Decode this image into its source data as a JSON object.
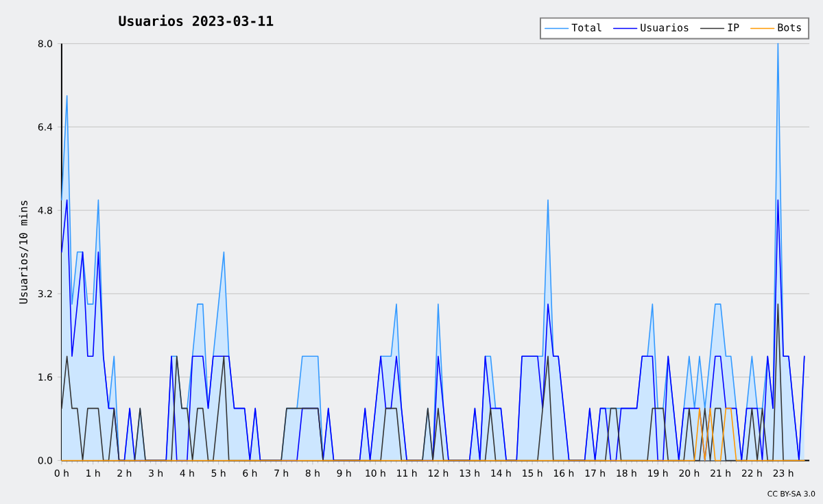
{
  "chart_data": {
    "type": "line",
    "title": "Usuarios  2023-03-11",
    "ylabel": "Usuarios/10 mins",
    "x": [
      0,
      0.17,
      0.33,
      0.5,
      0.67,
      0.83,
      1,
      1.17,
      1.33,
      1.5,
      1.67,
      1.83,
      2,
      2.17,
      2.33,
      2.5,
      2.67,
      2.83,
      3,
      3.17,
      3.33,
      3.5,
      3.67,
      3.83,
      4,
      4.17,
      4.33,
      4.5,
      4.67,
      4.83,
      5,
      5.17,
      5.33,
      5.5,
      5.67,
      5.83,
      6,
      6.17,
      6.33,
      6.5,
      6.67,
      6.83,
      7,
      7.17,
      7.33,
      7.5,
      7.67,
      7.83,
      8,
      8.17,
      8.33,
      8.5,
      8.67,
      8.83,
      9,
      9.17,
      9.33,
      9.5,
      9.67,
      9.83,
      10,
      10.17,
      10.33,
      10.5,
      10.67,
      10.83,
      11,
      11.17,
      11.33,
      11.5,
      11.67,
      11.83,
      12,
      12.17,
      12.33,
      12.5,
      12.67,
      12.83,
      13,
      13.17,
      13.33,
      13.5,
      13.67,
      13.83,
      14,
      14.17,
      14.33,
      14.5,
      14.67,
      14.83,
      15,
      15.17,
      15.33,
      15.5,
      15.67,
      15.83,
      16,
      16.17,
      16.33,
      16.5,
      16.67,
      16.83,
      17,
      17.17,
      17.33,
      17.5,
      17.67,
      17.83,
      18,
      18.17,
      18.33,
      18.5,
      18.67,
      18.83,
      19,
      19.17,
      19.33,
      19.5,
      19.67,
      19.83,
      20,
      20.17,
      20.33,
      20.5,
      20.67,
      20.83,
      21,
      21.17,
      21.33,
      21.5,
      21.67,
      21.83,
      22,
      22.17,
      22.33,
      22.5,
      22.67,
      22.83,
      23,
      23.17,
      23.33,
      23.5,
      23.67
    ],
    "series": [
      {
        "name": "Total",
        "type": "area",
        "color": "#3399ff",
        "values": [
          5,
          7,
          3,
          4,
          4,
          3,
          3,
          5,
          2,
          1,
          2,
          0,
          0,
          1,
          0,
          1,
          0,
          0,
          0,
          0,
          0,
          2,
          2,
          1,
          1,
          2,
          3,
          3,
          1,
          2,
          3,
          4,
          2,
          1,
          1,
          1,
          0,
          1,
          0,
          0,
          0,
          0,
          0,
          1,
          1,
          1,
          2,
          2,
          2,
          2,
          0,
          1,
          0,
          0,
          0,
          0,
          0,
          0,
          1,
          0,
          1,
          2,
          2,
          2,
          3,
          1,
          0,
          0,
          0,
          0,
          1,
          0,
          3,
          1,
          0,
          0,
          0,
          0,
          0,
          1,
          0,
          2,
          2,
          1,
          1,
          0,
          0,
          0,
          2,
          2,
          2,
          2,
          2,
          5,
          2,
          2,
          1,
          0,
          0,
          0,
          0,
          1,
          0,
          1,
          1,
          1,
          1,
          1,
          1,
          1,
          1,
          2,
          2,
          3,
          1,
          1,
          2,
          1,
          0,
          1,
          2,
          1,
          2,
          1,
          2,
          3,
          3,
          2,
          2,
          1,
          0,
          1,
          2,
          1,
          1,
          2,
          1,
          8,
          2,
          2,
          1,
          0,
          2
        ]
      },
      {
        "name": "Usuarios",
        "color": "#0000ff",
        "values": [
          4,
          5,
          2,
          3,
          4,
          2,
          2,
          4,
          2,
          1,
          1,
          0,
          0,
          1,
          0,
          0,
          0,
          0,
          0,
          0,
          0,
          2,
          0,
          0,
          0,
          2,
          2,
          2,
          1,
          2,
          2,
          2,
          2,
          1,
          1,
          1,
          0,
          1,
          0,
          0,
          0,
          0,
          0,
          0,
          0,
          0,
          1,
          1,
          1,
          1,
          0,
          1,
          0,
          0,
          0,
          0,
          0,
          0,
          1,
          0,
          1,
          2,
          1,
          1,
          2,
          1,
          0,
          0,
          0,
          0,
          0,
          0,
          2,
          1,
          0,
          0,
          0,
          0,
          0,
          1,
          0,
          2,
          1,
          1,
          1,
          0,
          0,
          0,
          2,
          2,
          2,
          2,
          1,
          3,
          2,
          2,
          1,
          0,
          0,
          0,
          0,
          1,
          0,
          1,
          1,
          0,
          0,
          1,
          1,
          1,
          1,
          2,
          2,
          2,
          0,
          0,
          2,
          1,
          0,
          1,
          1,
          1,
          1,
          0,
          1,
          2,
          2,
          1,
          1,
          1,
          0,
          1,
          1,
          1,
          0,
          2,
          1,
          5,
          2,
          2,
          1,
          0,
          2
        ]
      },
      {
        "name": "IP",
        "color": "#333333",
        "values": [
          1,
          2,
          1,
          1,
          0,
          1,
          1,
          1,
          0,
          0,
          1,
          0,
          0,
          0,
          0,
          1,
          0,
          0,
          0,
          0,
          0,
          0,
          2,
          1,
          1,
          0,
          1,
          1,
          0,
          0,
          1,
          2,
          0,
          0,
          0,
          0,
          0,
          0,
          0,
          0,
          0,
          0,
          0,
          1,
          1,
          1,
          1,
          1,
          1,
          1,
          0,
          0,
          0,
          0,
          0,
          0,
          0,
          0,
          0,
          0,
          0,
          0,
          1,
          1,
          1,
          0,
          0,
          0,
          0,
          0,
          1,
          0,
          1,
          0,
          0,
          0,
          0,
          0,
          0,
          0,
          0,
          0,
          1,
          0,
          0,
          0,
          0,
          0,
          0,
          0,
          0,
          0,
          1,
          2,
          0,
          0,
          0,
          0,
          0,
          0,
          0,
          0,
          0,
          0,
          0,
          1,
          1,
          0,
          0,
          0,
          0,
          0,
          0,
          1,
          1,
          1,
          0,
          0,
          0,
          0,
          1,
          0,
          0,
          1,
          0,
          1,
          1,
          0,
          0,
          0,
          0,
          0,
          1,
          0,
          1,
          0,
          0,
          3,
          0,
          0,
          0,
          0,
          0
        ]
      },
      {
        "name": "Bots",
        "color": "#ff9900",
        "values": [
          0,
          0,
          0,
          0,
          0,
          0,
          0,
          0,
          0,
          0,
          0,
          0,
          0,
          0,
          0,
          0,
          0,
          0,
          0,
          0,
          0,
          0,
          0,
          0,
          0,
          0,
          0,
          0,
          0,
          0,
          0,
          0,
          0,
          0,
          0,
          0,
          0,
          0,
          0,
          0,
          0,
          0,
          0,
          0,
          0,
          0,
          0,
          0,
          0,
          0,
          0,
          0,
          0,
          0,
          0,
          0,
          0,
          0,
          0,
          0,
          0,
          0,
          0,
          0,
          0,
          0,
          0,
          0,
          0,
          0,
          0,
          0,
          0,
          0,
          0,
          0,
          0,
          0,
          0,
          0,
          0,
          0,
          0,
          0,
          0,
          0,
          0,
          0,
          0,
          0,
          0,
          0,
          0,
          0,
          0,
          0,
          0,
          0,
          0,
          0,
          0,
          0,
          0,
          0,
          0,
          0,
          0,
          0,
          0,
          0,
          0,
          0,
          0,
          0,
          0,
          0,
          0,
          0,
          0,
          0,
          0,
          0,
          1,
          0,
          1,
          0,
          0,
          1,
          1,
          0,
          0,
          0,
          0,
          0,
          0,
          0,
          0,
          0,
          0,
          0,
          0,
          0,
          0
        ]
      }
    ],
    "xlim": [
      0,
      23.83
    ],
    "xticks": [
      {
        "value": 0,
        "label": "0 h"
      },
      {
        "value": 1,
        "label": "1 h"
      },
      {
        "value": 2,
        "label": "2 h"
      },
      {
        "value": 3,
        "label": "3 h"
      },
      {
        "value": 4,
        "label": "4 h"
      },
      {
        "value": 5,
        "label": "5 h"
      },
      {
        "value": 6,
        "label": "6 h"
      },
      {
        "value": 7,
        "label": "7 h"
      },
      {
        "value": 8,
        "label": "8 h"
      },
      {
        "value": 9,
        "label": "9 h"
      },
      {
        "value": 10,
        "label": "10 h"
      },
      {
        "value": 11,
        "label": "11 h"
      },
      {
        "value": 12,
        "label": "12 h"
      },
      {
        "value": 13,
        "label": "13 h"
      },
      {
        "value": 14,
        "label": "14 h"
      },
      {
        "value": 15,
        "label": "15 h"
      },
      {
        "value": 16,
        "label": "16 h"
      },
      {
        "value": 17,
        "label": "17 h"
      },
      {
        "value": 18,
        "label": "18 h"
      },
      {
        "value": 19,
        "label": "19 h"
      },
      {
        "value": 20,
        "label": "20 h"
      },
      {
        "value": 21,
        "label": "21 h"
      },
      {
        "value": 22,
        "label": "22 h"
      },
      {
        "value": 23,
        "label": "23 h"
      }
    ],
    "ylim": [
      0,
      8
    ],
    "yticks": [
      {
        "value": 0,
        "label": "0.0"
      },
      {
        "value": 1.6,
        "label": "1.6"
      },
      {
        "value": 3.2,
        "label": "3.2"
      },
      {
        "value": 4.8,
        "label": "4.8"
      },
      {
        "value": 6.4,
        "label": "6.4"
      },
      {
        "value": 8,
        "label": "8.0"
      }
    ],
    "grid": "y",
    "legend": "top right",
    "annotations": [
      "CC BY-SA 3.0"
    ]
  }
}
